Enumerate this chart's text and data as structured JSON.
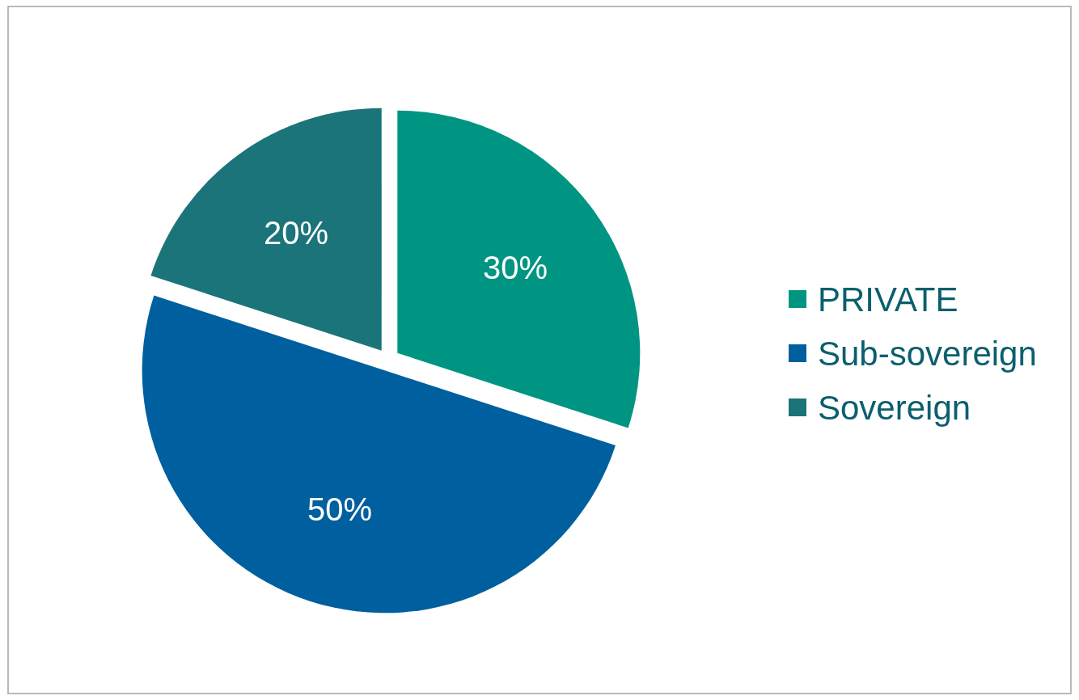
{
  "chart_data": {
    "type": "pie",
    "categories": [
      "PRIVATE",
      "Sub-sovereign",
      "Sovereign"
    ],
    "values": [
      30,
      50,
      20
    ],
    "colors": [
      "#009582",
      "#005f9e",
      "#1b7479"
    ],
    "value_labels": [
      "30%",
      "50%",
      "20%"
    ],
    "legend": "right"
  }
}
